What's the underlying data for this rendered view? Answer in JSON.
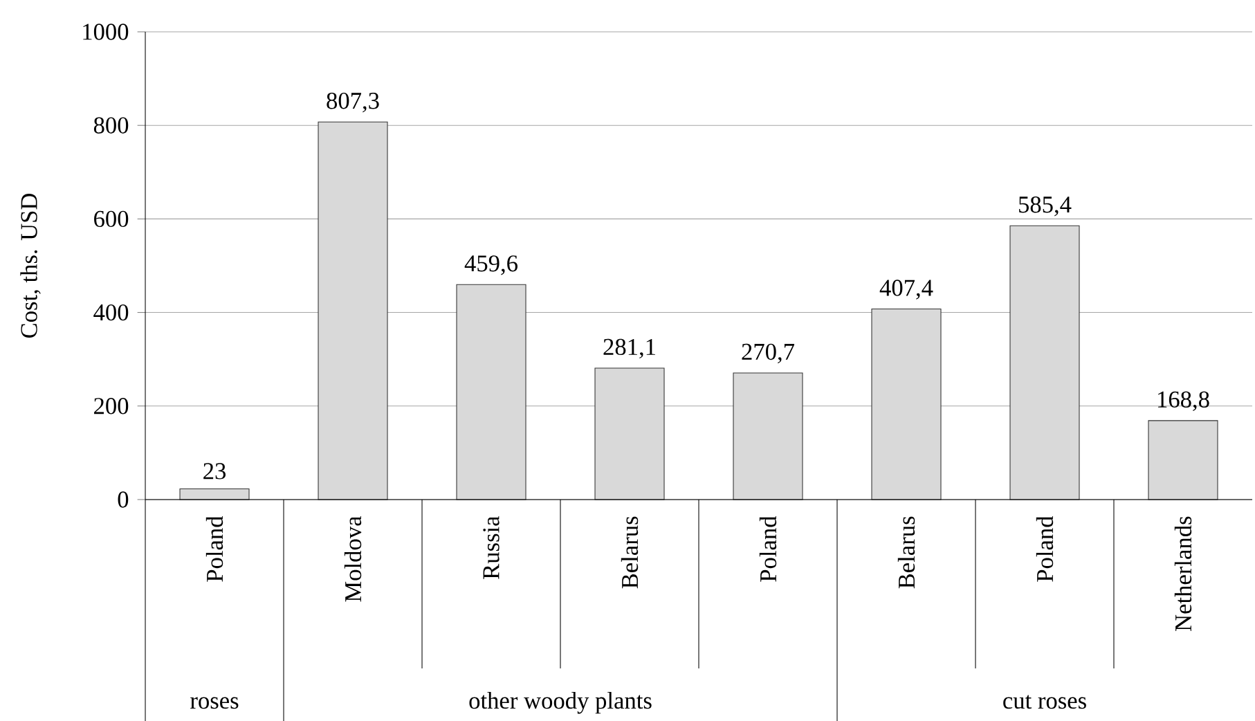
{
  "chart_data": {
    "type": "bar",
    "ylabel": "Cost, ths. USD",
    "categories": [
      "Poland",
      "Moldova",
      "Russia",
      "Belarus",
      "Poland",
      "Belarus",
      "Poland",
      "Netherlands"
    ],
    "values": [
      23,
      807.3,
      459.6,
      281.1,
      270.7,
      407.4,
      585.4,
      168.8
    ],
    "value_labels": [
      "23",
      "807,3",
      "459,6",
      "281,1",
      "270,7",
      "407,4",
      "585,4",
      "168,8"
    ],
    "color": "#d9d9d9",
    "ylim": [
      0,
      1000
    ],
    "yticks": [
      0,
      200,
      400,
      600,
      800,
      1000
    ],
    "grid": "y",
    "annotations": [
      "roses",
      "other woody plants",
      "cut roses"
    ]
  }
}
